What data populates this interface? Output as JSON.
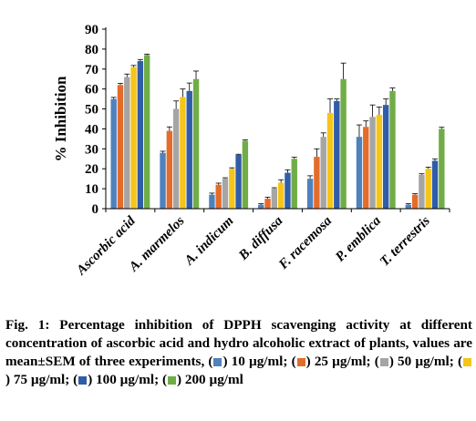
{
  "chart_data": {
    "type": "bar",
    "ylabel": "% Inhibition",
    "xlabel": "",
    "ylim": [
      0,
      90
    ],
    "yticks": [
      0,
      10,
      20,
      30,
      40,
      50,
      60,
      70,
      80,
      90
    ],
    "grid": false,
    "categories": [
      "Ascorbic acid",
      "A. marmelos",
      "A. indicum",
      "B. diffusa",
      "F. racemosa",
      "P. emblica",
      "T. terrestris"
    ],
    "series": [
      {
        "name": "10 µg/ml",
        "color": "#4F81BD",
        "values": [
          55,
          28,
          7,
          2,
          15,
          36,
          2
        ],
        "errors": [
          0.8,
          0.8,
          0.8,
          0.5,
          1.5,
          6,
          0.5
        ]
      },
      {
        "name": "25 µg/ml",
        "color": "#E46C2A",
        "values": [
          62,
          39,
          12,
          5,
          26,
          41,
          7
        ],
        "errors": [
          0.8,
          2,
          0.8,
          0.8,
          4,
          3,
          0.5
        ]
      },
      {
        "name": "50 µg/ml",
        "color": "#A5A5A5",
        "values": [
          66,
          50,
          15,
          10,
          36,
          46,
          17
        ],
        "errors": [
          1.5,
          4,
          0.5,
          0.5,
          2,
          6,
          0.5
        ]
      },
      {
        "name": "75 µg/ml",
        "color": "#F5C518",
        "values": [
          71,
          56,
          20,
          13,
          48,
          47,
          20
        ],
        "errors": [
          0.8,
          4,
          0.5,
          1.5,
          7,
          4,
          0.8
        ]
      },
      {
        "name": "100 µg/ml",
        "color": "#2F5DA8",
        "values": [
          74,
          59,
          27,
          18,
          54,
          52,
          24
        ],
        "errors": [
          0.8,
          4,
          0.3,
          1.5,
          1,
          3,
          1
        ]
      },
      {
        "name": "200 µg/ml",
        "color": "#70AD47",
        "values": [
          77,
          65,
          34,
          25,
          65,
          59,
          40
        ],
        "errors": [
          0.5,
          4,
          0.5,
          0.8,
          8,
          1.5,
          0.8
        ]
      }
    ]
  },
  "caption": {
    "lead": "Fig. 1: Percentage inhibition of DPPH scavenging activity at different concentration of ascorbic acid and hydro alcoholic extract of plants, values are mean±SEM of three experiments,",
    "legend_items": [
      {
        "label": "10 µg/ml;",
        "color": "#4F81BD"
      },
      {
        "label": "25 µg/ml;",
        "color": "#E46C2A"
      },
      {
        "label": "50 µg/ml;",
        "color": "#A5A5A5"
      },
      {
        "label": "75 µg/ml;",
        "color": "#F5C518"
      },
      {
        "label": "100 µg/ml;",
        "color": "#2F5DA8"
      },
      {
        "label": "200 µg/ml",
        "color": "#70AD47"
      }
    ]
  }
}
